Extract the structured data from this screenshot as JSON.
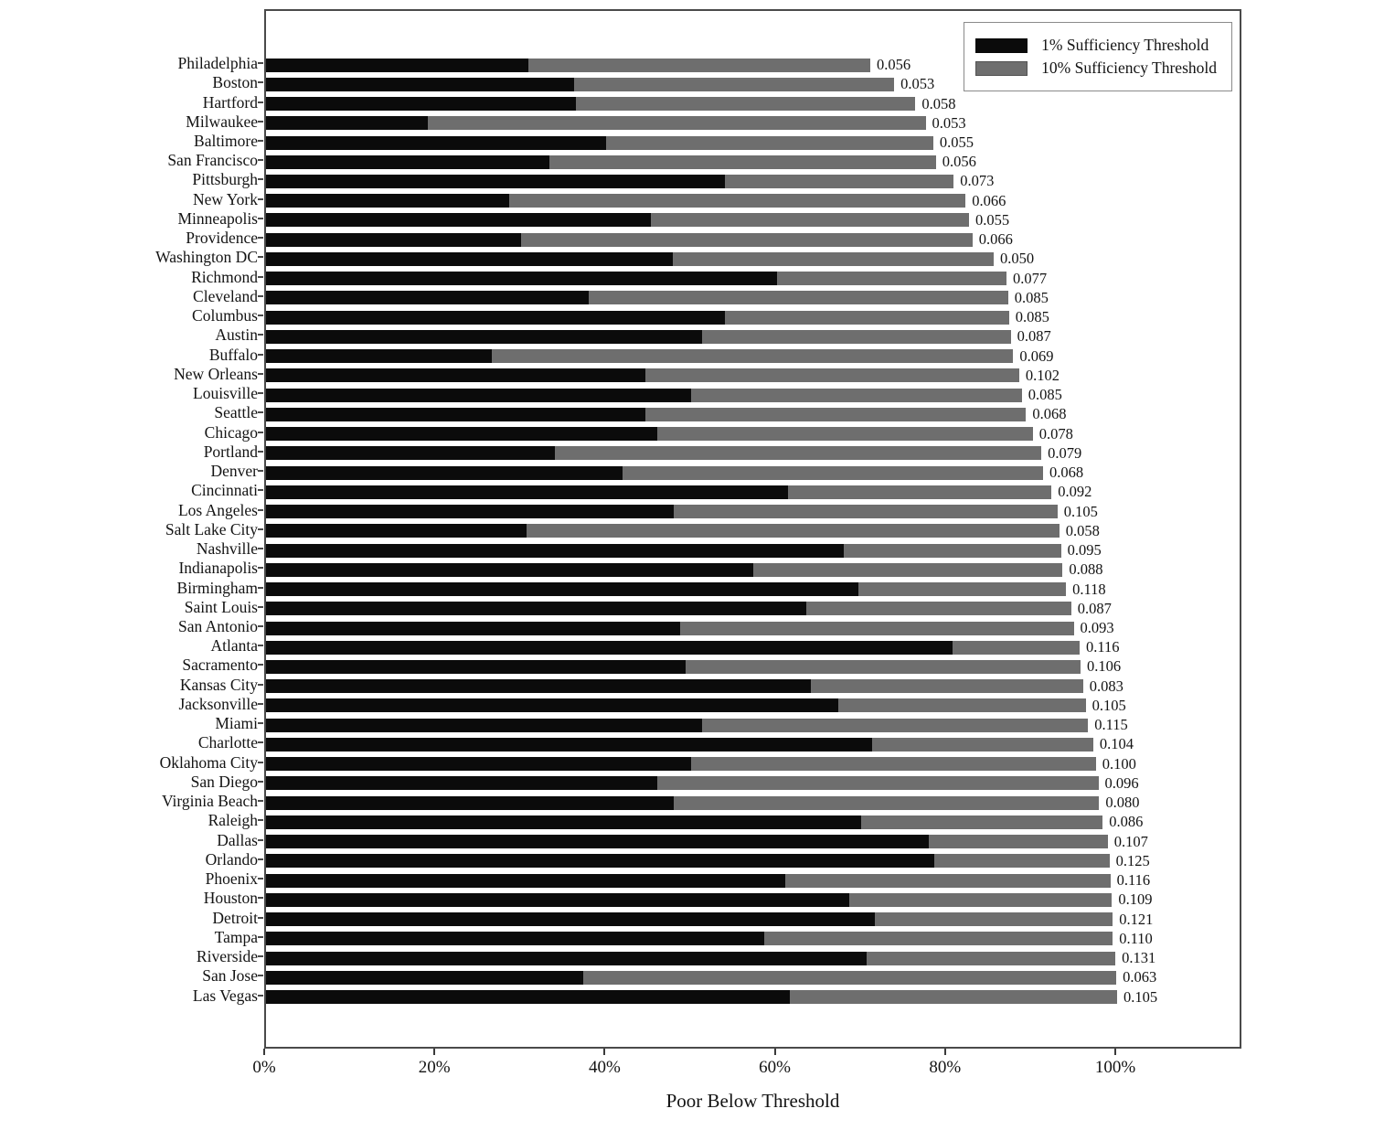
{
  "chart_data": {
    "type": "bar",
    "orientation": "horizontal",
    "title": "",
    "xlabel": "Poor Below Threshold",
    "ylabel": "",
    "x_tick_labels": [
      "0%",
      "20%",
      "40%",
      "60%",
      "80%",
      "100%"
    ],
    "x_tick_values": [
      0,
      20,
      40,
      60,
      80,
      100
    ],
    "xlim": [
      0,
      114.8
    ],
    "grid": false,
    "legend_position": "top-right",
    "categories": [
      "Philadelphia",
      "Boston",
      "Hartford",
      "Milwaukee",
      "Baltimore",
      "San Francisco",
      "Pittsburgh",
      "New York",
      "Minneapolis",
      "Providence",
      "Washington DC",
      "Richmond",
      "Cleveland",
      "Columbus",
      "Austin",
      "Buffalo",
      "New Orleans",
      "Louisville",
      "Seattle",
      "Chicago",
      "Portland",
      "Denver",
      "Cincinnati",
      "Los Angeles",
      "Salt Lake City",
      "Nashville",
      "Indianapolis",
      "Birmingham",
      "Saint Louis",
      "San Antonio",
      "Atlanta",
      "Sacramento",
      "Kansas City",
      "Jacksonville",
      "Miami",
      "Charlotte",
      "Oklahoma City",
      "San Diego",
      "Virginia Beach",
      "Raleigh",
      "Dallas",
      "Orlando",
      "Phoenix",
      "Houston",
      "Detroit",
      "Tampa",
      "Riverside",
      "San Jose",
      "Las Vegas"
    ],
    "series": [
      {
        "name": "1% Sufficiency Threshold",
        "color": "#0b0b0b",
        "values_pct": [
          30.8,
          36.2,
          36.4,
          19.0,
          40.0,
          33.3,
          53.9,
          28.6,
          45.2,
          30.0,
          47.8,
          60.0,
          37.9,
          53.9,
          51.2,
          26.5,
          44.6,
          49.9,
          44.6,
          46.0,
          33.9,
          41.9,
          61.3,
          47.9,
          30.6,
          67.9,
          57.2,
          69.6,
          63.5,
          48.7,
          80.7,
          49.3,
          64.0,
          67.2,
          51.2,
          71.2,
          49.9,
          46.0,
          47.9,
          69.9,
          77.9,
          78.5,
          61.0,
          68.5,
          71.5,
          58.5,
          70.6,
          37.3,
          61.5
        ]
      },
      {
        "name": "10% Sufficiency Threshold",
        "color": "#6e6e6e",
        "values_pct": [
          71.0,
          73.8,
          76.3,
          77.5,
          78.4,
          78.7,
          80.8,
          82.2,
          82.6,
          83.0,
          85.5,
          87.0,
          87.2,
          87.3,
          87.5,
          87.8,
          88.5,
          88.8,
          89.3,
          90.1,
          91.1,
          91.3,
          92.3,
          93.0,
          93.2,
          93.4,
          93.6,
          94.0,
          94.6,
          94.9,
          95.6,
          95.7,
          96.0,
          96.3,
          96.6,
          97.2,
          97.5,
          97.8,
          97.9,
          98.3,
          98.9,
          99.1,
          99.2,
          99.4,
          99.5,
          99.5,
          99.8,
          99.9,
          100.0
        ]
      }
    ],
    "bar_end_labels": [
      "0.056",
      "0.053",
      "0.058",
      "0.053",
      "0.055",
      "0.056",
      "0.073",
      "0.066",
      "0.055",
      "0.066",
      "0.050",
      "0.077",
      "0.085",
      "0.085",
      "0.087",
      "0.069",
      "0.102",
      "0.085",
      "0.068",
      "0.078",
      "0.079",
      "0.068",
      "0.092",
      "0.105",
      "0.058",
      "0.095",
      "0.088",
      "0.118",
      "0.087",
      "0.093",
      "0.116",
      "0.106",
      "0.083",
      "0.105",
      "0.115",
      "0.104",
      "0.100",
      "0.096",
      "0.080",
      "0.086",
      "0.107",
      "0.125",
      "0.116",
      "0.109",
      "0.121",
      "0.110",
      "0.131",
      "0.063",
      "0.105"
    ]
  }
}
